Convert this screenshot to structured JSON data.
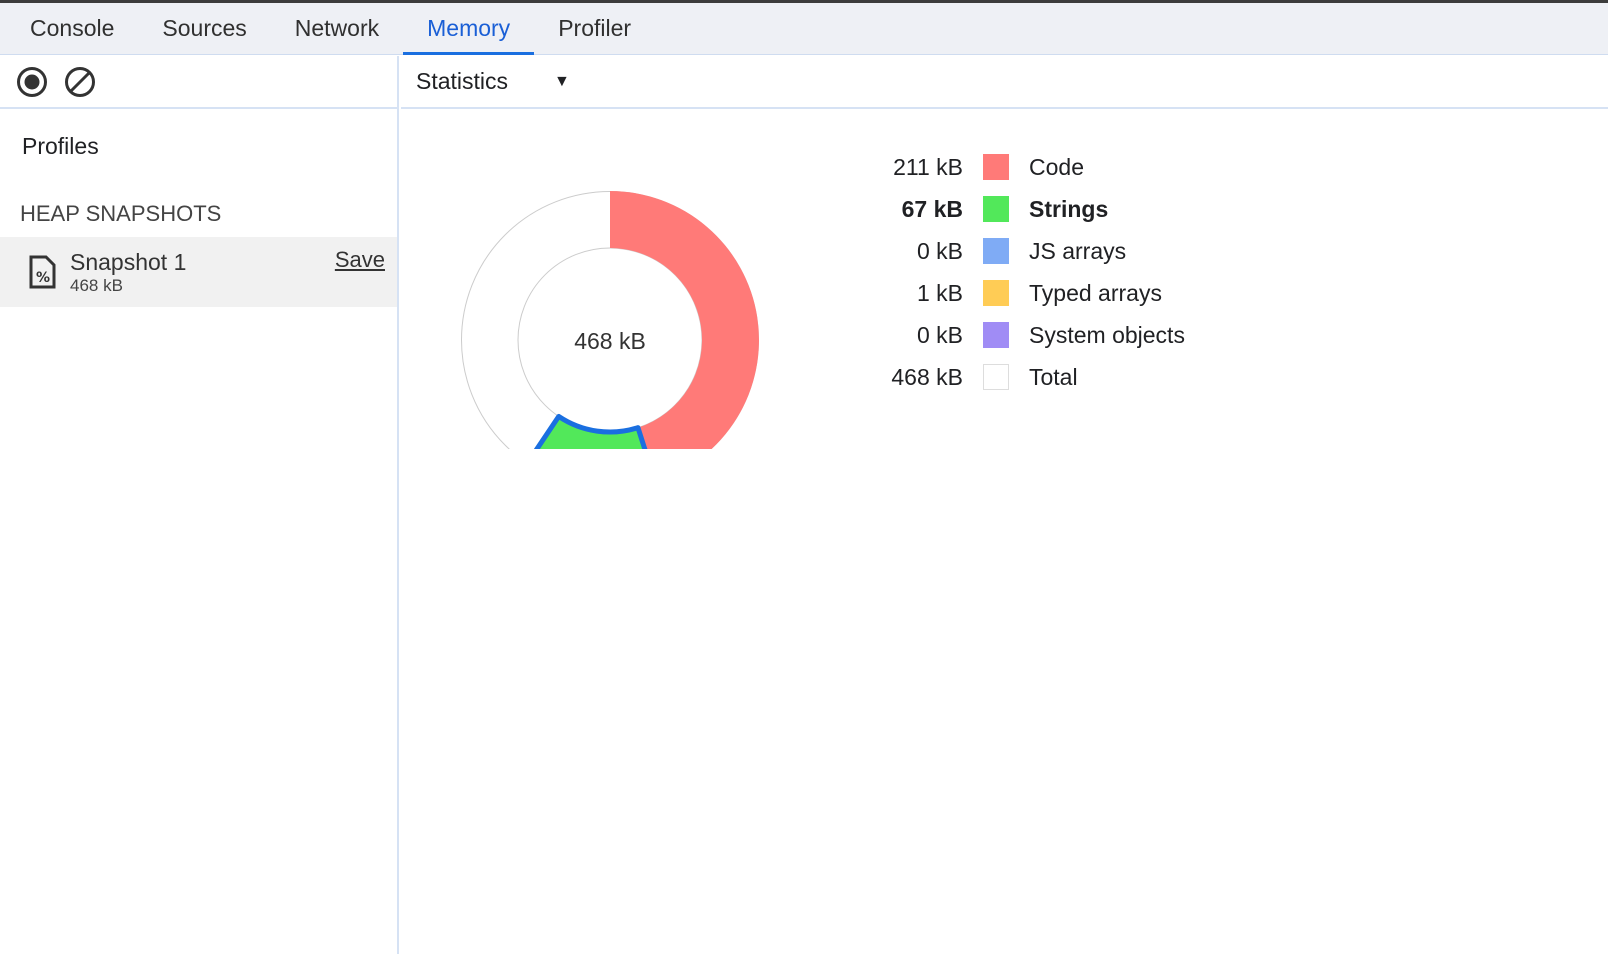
{
  "tabs": [
    "Console",
    "Sources",
    "Network",
    "Memory",
    "Profiler"
  ],
  "active_tab": "Memory",
  "sidebar": {
    "profiles_label": "Profiles",
    "section": "HEAP SNAPSHOTS",
    "snapshot": {
      "name": "Snapshot 1",
      "size": "468 kB",
      "save": "Save"
    }
  },
  "view_select": "Statistics",
  "chart_data": {
    "type": "pie",
    "center_label": "468 kB",
    "total": 468,
    "unit": "kB",
    "highlighted": "Strings",
    "slices": [
      {
        "name": "Code",
        "value": 211,
        "label": "211 kB",
        "color": "#ff7a78"
      },
      {
        "name": "Strings",
        "value": 67,
        "label": "67 kB",
        "color": "#52e85a"
      },
      {
        "name": "JS arrays",
        "value": 0,
        "label": "0 kB",
        "color": "#7fabf5"
      },
      {
        "name": "Typed arrays",
        "value": 1,
        "label": "1 kB",
        "color": "#ffcc55"
      },
      {
        "name": "System objects",
        "value": 0,
        "label": "0 kB",
        "color": "#a08cf5"
      }
    ],
    "total_row": {
      "name": "Total",
      "label": "468 kB",
      "color": "#ffffff"
    }
  }
}
